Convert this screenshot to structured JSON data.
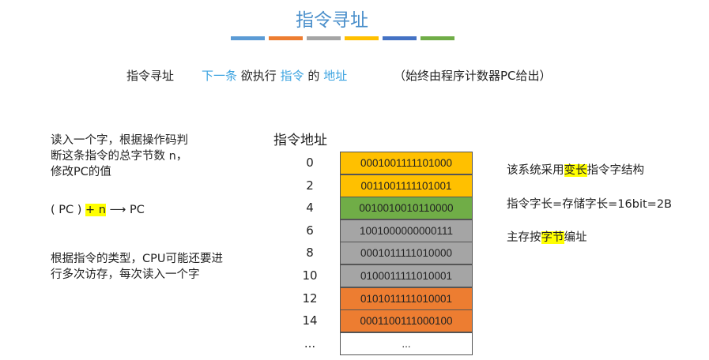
{
  "title": "指令寻址",
  "title_bar_colors": [
    "#5b9bd5",
    "#ed7d31",
    "#a5a5a5",
    "#ffc000",
    "#4472c4",
    "#70ad47"
  ],
  "definition": {
    "term": "指令寻址",
    "p1": "下一条",
    "p2": "欲执行",
    "p3": "指令",
    "p4": "的",
    "p5": "地址",
    "note": "（始终由程序计数器PC给出）"
  },
  "left": {
    "para1": [
      "读入一个字，根据操作码判",
      "断这条指令的总字节数 n，",
      "修改PC的值"
    ],
    "formula": {
      "pre": "( PC )",
      "hl": "+ n",
      "arrow": "⟶",
      "post": "PC"
    },
    "para2": [
      "根据指令的类型，CPU可能还要进",
      "行多次访存，每次读入一个字"
    ]
  },
  "table": {
    "header": "指令地址",
    "rows": [
      {
        "addr": "0",
        "value": "0001001111101000",
        "color": "#ffc000"
      },
      {
        "addr": "2",
        "value": "0011001111101001",
        "color": "#ffc000"
      },
      {
        "addr": "4",
        "value": "0010010010110000",
        "color": "#70ad47"
      },
      {
        "addr": "6",
        "value": "1001000000000111",
        "color": "#a5a5a5"
      },
      {
        "addr": "8",
        "value": "0001011111010000",
        "color": "#a5a5a5"
      },
      {
        "addr": "10",
        "value": "0100011111010001",
        "color": "#a5a5a5"
      },
      {
        "addr": "12",
        "value": "0101011111010001",
        "color": "#ed7d31"
      },
      {
        "addr": "14",
        "value": "0001100111000100",
        "color": "#ed7d31"
      },
      {
        "addr": "...",
        "value": "...",
        "color": "#ffffff"
      }
    ]
  },
  "right": {
    "l1a": "该系统采用",
    "l1hl": "变长",
    "l1b": "指令字结构",
    "l2": "指令字长=存储字长=16bit=2B",
    "l3a": "主存按",
    "l3hl": "字节",
    "l3b": "编址"
  }
}
